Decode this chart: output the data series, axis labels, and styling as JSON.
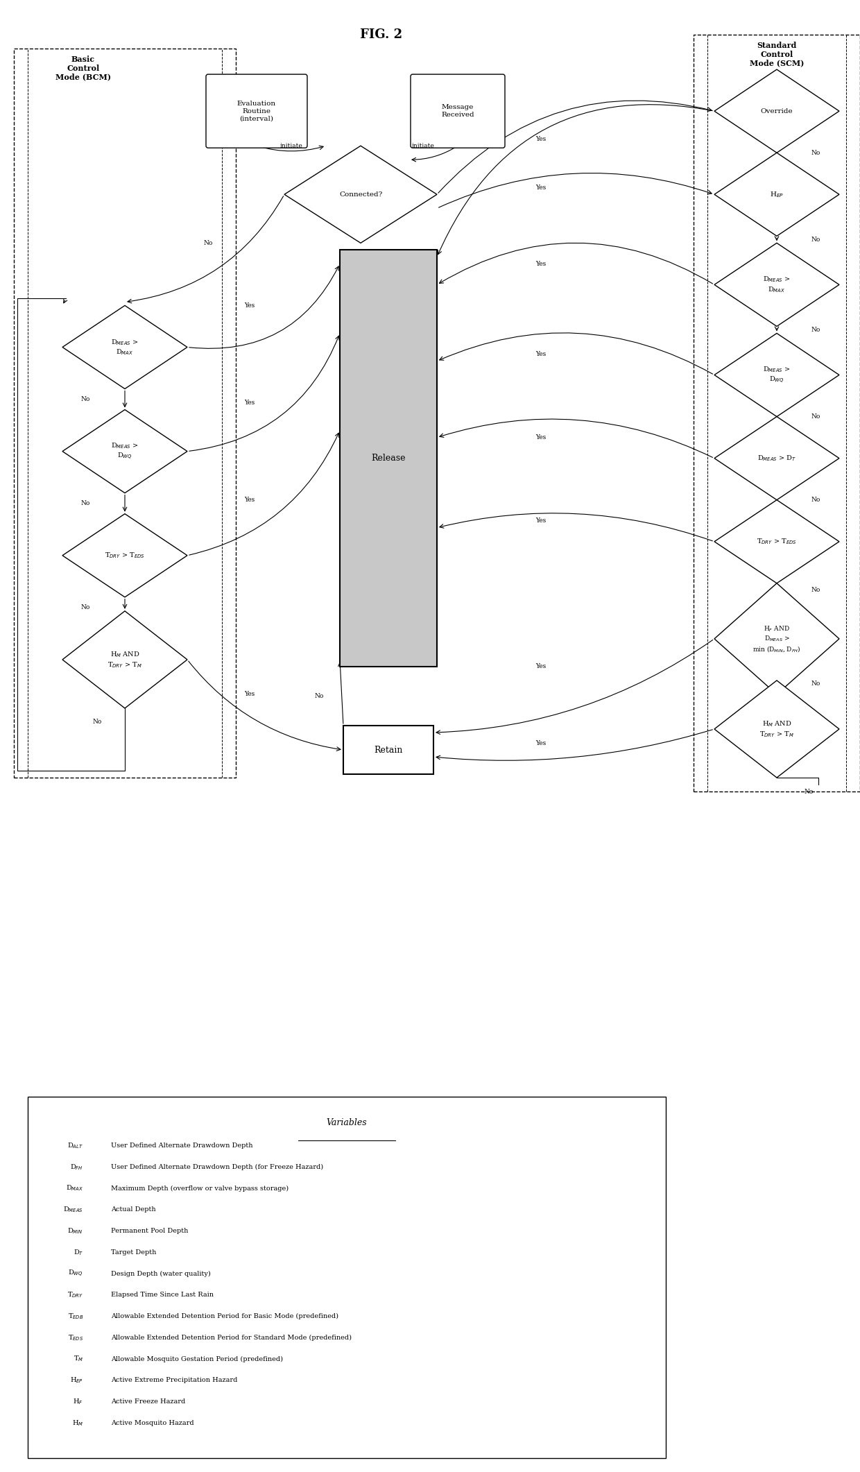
{
  "title": "FIG. 2",
  "fig_width": 12.4,
  "fig_height": 21.22,
  "background_color": "#ffffff",
  "variables": [
    [
      "D_ALT",
      "User Defined Alternate Drawdown Depth"
    ],
    [
      "D_FH",
      "User Defined Alternate Drawdown Depth (for Freeze Hazard)"
    ],
    [
      "D_MAX",
      "Maximum Depth (overflow or valve bypass storage)"
    ],
    [
      "D_MEAS",
      "Actual Depth"
    ],
    [
      "D_MIN",
      "Permanent Pool Depth"
    ],
    [
      "D_T",
      "Target Depth"
    ],
    [
      "D_WQ",
      "Design Depth (water quality)"
    ],
    [
      "T_DRY",
      "Elapsed Time Since Last Rain"
    ],
    [
      "T_EDB",
      "Allowable Extended Detention Period for Basic Mode (predefined)"
    ],
    [
      "T_EDS",
      "Allowable Extended Detention Period for Standard Mode (predefined)"
    ],
    [
      "T_M",
      "Allowable Mosquito Gestation Period (predefined)"
    ],
    [
      "H_EP",
      "Active Extreme Precipitation Hazard"
    ],
    [
      "H_F",
      "Active Freeze Hazard"
    ],
    [
      "H_M",
      "Active Mosquito Hazard"
    ]
  ],
  "var_symbols_latex": [
    "D$_{ALT}$",
    "D$_{FH}$",
    "D$_{MAX}$",
    "D$_{MEAS}$",
    "D$_{MIN}$",
    "D$_T$",
    "D$_{WQ}$",
    "T$_{DRY}$",
    "T$_{EDB}$",
    "T$_{EDS}$",
    "T$_M$",
    "H$_{EP}$",
    "H$_F$",
    "H$_M$"
  ]
}
